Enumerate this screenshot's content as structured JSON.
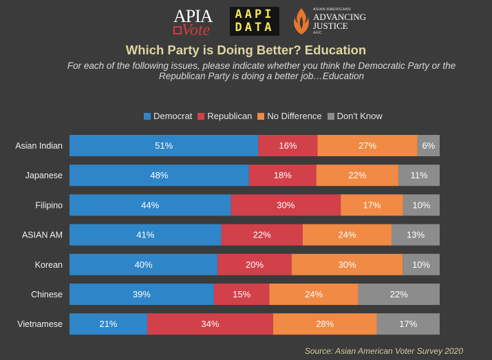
{
  "logos": {
    "apia": {
      "line1": "APIA",
      "line2": "Vote"
    },
    "aapi": {
      "line1": "AAPI",
      "line2": "DATA"
    },
    "aaj": {
      "small": "ASIAN AMERICANS",
      "line1": "ADVANCING",
      "line2": "JUSTICE",
      "tiny": "AAJC"
    }
  },
  "chart_data": {
    "type": "bar",
    "orientation": "horizontal",
    "stacked": true,
    "title": "Which Party is Doing Better? Education",
    "subtitle": "For each of the following issues, please  indicate whether you think the Democratic Party or the Republican Party is doing a better job…Education",
    "categories": [
      "Asian Indian",
      "Japanese",
      "Filipino",
      "ASIAN AM",
      "Korean",
      "Chinese",
      "Vietnamese"
    ],
    "series": [
      {
        "name": "Democrat",
        "color": "#2e86c8",
        "values": [
          51,
          48,
          44,
          41,
          40,
          39,
          21
        ]
      },
      {
        "name": "Republican",
        "color": "#d2404a",
        "values": [
          16,
          18,
          30,
          22,
          20,
          15,
          34
        ]
      },
      {
        "name": "No Difference",
        "color": "#f08a44",
        "values": [
          27,
          22,
          17,
          24,
          30,
          24,
          28
        ]
      },
      {
        "name": "Don't Know",
        "color": "#8c8c8c",
        "values": [
          6,
          11,
          10,
          13,
          10,
          22,
          17
        ]
      }
    ],
    "value_suffix": "%",
    "legend_position": "top",
    "source": "Source: Asian American Voter Survey 2020"
  }
}
